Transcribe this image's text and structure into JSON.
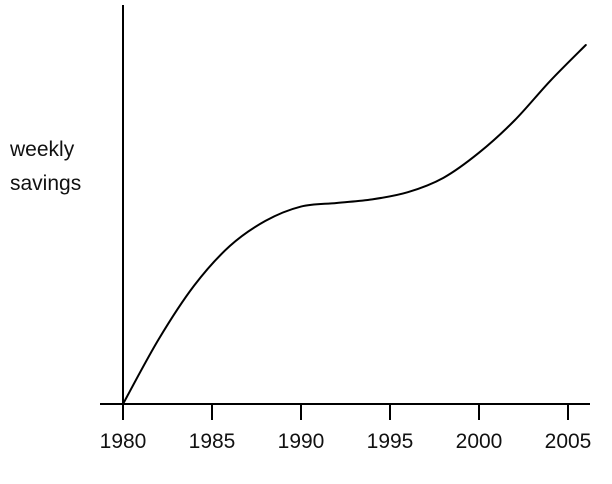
{
  "chart_data": {
    "type": "line",
    "title": "",
    "xlabel": "",
    "ylabel_lines": [
      "weekly",
      "savings"
    ],
    "x_ticks": [
      "1980",
      "1985",
      "1990",
      "1995",
      "2000",
      "2005"
    ],
    "xlim": [
      1980,
      2006.5
    ],
    "ylim": [
      0,
      1
    ],
    "y_ticks_shown": false,
    "grid": false,
    "legend": "none",
    "series": [
      {
        "x": [
          1980,
          1982,
          1984,
          1986,
          1988,
          1990,
          1992,
          1994,
          1996,
          1998,
          2000,
          2002,
          2004,
          2006
        ],
        "values": [
          0,
          0.18,
          0.33,
          0.44,
          0.51,
          0.55,
          0.56,
          0.57,
          0.59,
          0.63,
          0.7,
          0.79,
          0.9,
          1.0
        ]
      }
    ],
    "line_color": "#000000",
    "axis_color": "#000000"
  }
}
